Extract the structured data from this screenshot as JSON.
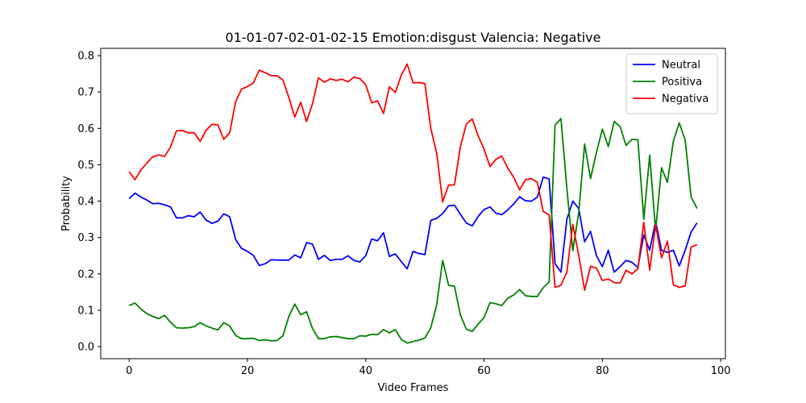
{
  "chart_data": {
    "type": "line",
    "title": "01-01-07-02-01-02-15 Emotion:disgust Valencia: Negative",
    "xlabel": "Video Frames",
    "ylabel": "Probability",
    "xlim": [
      -4.8,
      100.8
    ],
    "ylim": [
      -0.033,
      0.82
    ],
    "xticks": [
      0,
      20,
      40,
      60,
      80,
      100
    ],
    "yticks": [
      0.0,
      0.1,
      0.2,
      0.3,
      0.4,
      0.5,
      0.6,
      0.7,
      0.8
    ],
    "xtick_labels": [
      "0",
      "20",
      "40",
      "60",
      "80",
      "100"
    ],
    "ytick_labels": [
      "0.0",
      "0.1",
      "0.2",
      "0.3",
      "0.4",
      "0.5",
      "0.6",
      "0.7",
      "0.8"
    ],
    "grid": false,
    "legend": "top-right",
    "series": [
      {
        "name": "Neutral",
        "color": "#0000ff",
        "values": [
          0.407,
          0.422,
          0.411,
          0.403,
          0.393,
          0.394,
          0.39,
          0.384,
          0.354,
          0.354,
          0.36,
          0.357,
          0.37,
          0.348,
          0.339,
          0.345,
          0.365,
          0.357,
          0.295,
          0.27,
          0.262,
          0.251,
          0.223,
          0.228,
          0.239,
          0.238,
          0.238,
          0.238,
          0.252,
          0.244,
          0.286,
          0.282,
          0.24,
          0.251,
          0.237,
          0.24,
          0.24,
          0.25,
          0.237,
          0.233,
          0.25,
          0.296,
          0.291,
          0.313,
          0.248,
          0.255,
          0.234,
          0.214,
          0.262,
          0.256,
          0.253,
          0.347,
          0.353,
          0.366,
          0.387,
          0.389,
          0.364,
          0.34,
          0.332,
          0.358,
          0.377,
          0.384,
          0.367,
          0.363,
          0.376,
          0.392,
          0.412,
          0.401,
          0.4,
          0.411,
          0.466,
          0.461,
          0.228,
          0.205,
          0.35,
          0.4,
          0.38,
          0.288,
          0.317,
          0.25,
          0.22,
          0.265,
          0.205,
          0.22,
          0.237,
          0.232,
          0.218,
          0.307,
          0.265,
          0.345,
          0.265,
          0.259,
          0.265,
          0.222,
          0.265,
          0.315,
          0.34
        ]
      },
      {
        "name": "Positiva",
        "color": "#008000",
        "values": [
          0.113,
          0.12,
          0.103,
          0.091,
          0.083,
          0.077,
          0.086,
          0.067,
          0.052,
          0.051,
          0.052,
          0.055,
          0.066,
          0.057,
          0.051,
          0.046,
          0.066,
          0.057,
          0.031,
          0.022,
          0.022,
          0.023,
          0.017,
          0.019,
          0.016,
          0.017,
          0.03,
          0.083,
          0.117,
          0.088,
          0.096,
          0.05,
          0.022,
          0.022,
          0.027,
          0.028,
          0.025,
          0.022,
          0.022,
          0.03,
          0.029,
          0.034,
          0.033,
          0.047,
          0.038,
          0.047,
          0.02,
          0.01,
          0.014,
          0.018,
          0.024,
          0.052,
          0.116,
          0.237,
          0.169,
          0.166,
          0.087,
          0.048,
          0.042,
          0.062,
          0.08,
          0.121,
          0.118,
          0.113,
          0.133,
          0.142,
          0.157,
          0.14,
          0.138,
          0.138,
          0.162,
          0.178,
          0.609,
          0.627,
          0.435,
          0.264,
          0.368,
          0.557,
          0.462,
          0.534,
          0.598,
          0.55,
          0.619,
          0.605,
          0.553,
          0.57,
          0.569,
          0.35,
          0.526,
          0.319,
          0.492,
          0.452,
          0.565,
          0.615,
          0.568,
          0.412,
          0.38
        ]
      },
      {
        "name": "Negativa",
        "color": "#ff0000",
        "values": [
          0.481,
          0.459,
          0.486,
          0.505,
          0.522,
          0.527,
          0.523,
          0.549,
          0.593,
          0.594,
          0.588,
          0.588,
          0.564,
          0.595,
          0.611,
          0.61,
          0.57,
          0.588,
          0.673,
          0.708,
          0.715,
          0.725,
          0.76,
          0.753,
          0.745,
          0.745,
          0.733,
          0.685,
          0.631,
          0.672,
          0.619,
          0.668,
          0.739,
          0.727,
          0.736,
          0.732,
          0.735,
          0.728,
          0.741,
          0.737,
          0.72,
          0.67,
          0.676,
          0.641,
          0.714,
          0.699,
          0.746,
          0.777,
          0.725,
          0.726,
          0.723,
          0.6,
          0.531,
          0.398,
          0.444,
          0.445,
          0.55,
          0.612,
          0.626,
          0.58,
          0.543,
          0.495,
          0.515,
          0.524,
          0.491,
          0.466,
          0.431,
          0.459,
          0.462,
          0.452,
          0.372,
          0.362,
          0.163,
          0.169,
          0.205,
          0.336,
          0.252,
          0.155,
          0.221,
          0.216,
          0.182,
          0.186,
          0.176,
          0.175,
          0.21,
          0.2,
          0.214,
          0.342,
          0.21,
          0.335,
          0.244,
          0.29,
          0.17,
          0.163,
          0.167,
          0.274,
          0.28
        ]
      }
    ]
  }
}
